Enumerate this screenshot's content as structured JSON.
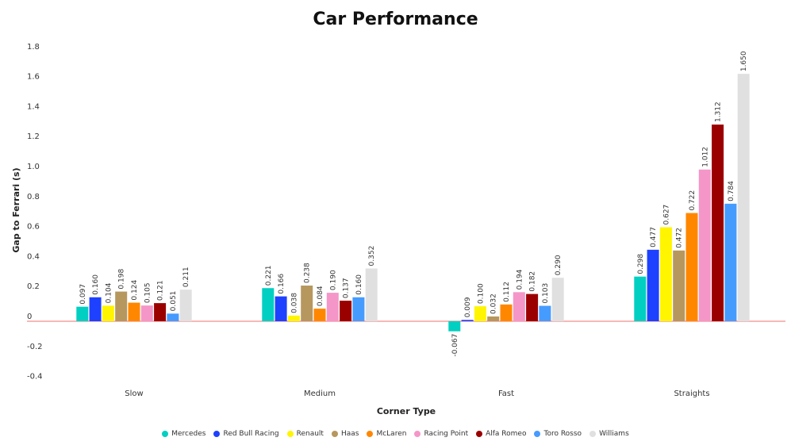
{
  "chart_data": {
    "type": "bar",
    "title": "Car Performance",
    "xlabel": "Corner Type",
    "ylabel": "Gap to Ferrari (s)",
    "ylim": [
      -0.4,
      1.8
    ],
    "yticks": [
      "-0.4",
      "-0.2",
      "0",
      "0.2",
      "0.4",
      "0.6",
      "0.8",
      "1.0",
      "1.2",
      "1.4",
      "1.6",
      "1.8"
    ],
    "categories": [
      "Slow",
      "Medium",
      "Fast",
      "Straights"
    ],
    "legend_position": "bottom",
    "series": [
      {
        "name": "Mercedes",
        "color": "#00cfc1",
        "values": [
          0.097,
          0.221,
          -0.067,
          0.298
        ],
        "labels": [
          "0.097",
          "0.221",
          "-0.067",
          "0.298"
        ]
      },
      {
        "name": "Red Bull Racing",
        "color": "#1e41ff",
        "values": [
          0.16,
          0.166,
          0.009,
          0.477
        ],
        "labels": [
          "0.160",
          "0.166",
          "0.009",
          "0.477"
        ]
      },
      {
        "name": "Renault",
        "color": "#fff500",
        "values": [
          0.104,
          0.038,
          0.1,
          0.627
        ],
        "labels": [
          "0.104",
          "0.038",
          "0.100",
          "0.627"
        ]
      },
      {
        "name": "Haas",
        "color": "#b6975e",
        "values": [
          0.198,
          0.238,
          0.032,
          0.472
        ],
        "labels": [
          "0.198",
          "0.238",
          "0.032",
          "0.472"
        ]
      },
      {
        "name": "McLaren",
        "color": "#ff8700",
        "values": [
          0.124,
          0.084,
          0.112,
          0.722
        ],
        "labels": [
          "0.124",
          "0.084",
          "0.112",
          "0.722"
        ]
      },
      {
        "name": "Racing Point",
        "color": "#f596c8",
        "values": [
          0.105,
          0.19,
          0.194,
          1.012
        ],
        "labels": [
          "0.105",
          "0.190",
          "0.194",
          "1.012"
        ]
      },
      {
        "name": "Alfa Romeo",
        "color": "#9b0000",
        "values": [
          0.121,
          0.137,
          0.182,
          1.312
        ],
        "labels": [
          "0.121",
          "0.137",
          "0.182",
          "1.312"
        ]
      },
      {
        "name": "Toro Rosso",
        "color": "#469bff",
        "values": [
          0.051,
          0.16,
          0.103,
          0.784
        ],
        "labels": [
          "0.051",
          "0.160",
          "0.103",
          "0.784"
        ]
      },
      {
        "name": "Williams",
        "color": "#e0e0e0",
        "values": [
          0.211,
          0.352,
          0.29,
          1.65
        ],
        "labels": [
          "0.211",
          "0.352",
          "0.290",
          "1.650"
        ]
      }
    ]
  }
}
